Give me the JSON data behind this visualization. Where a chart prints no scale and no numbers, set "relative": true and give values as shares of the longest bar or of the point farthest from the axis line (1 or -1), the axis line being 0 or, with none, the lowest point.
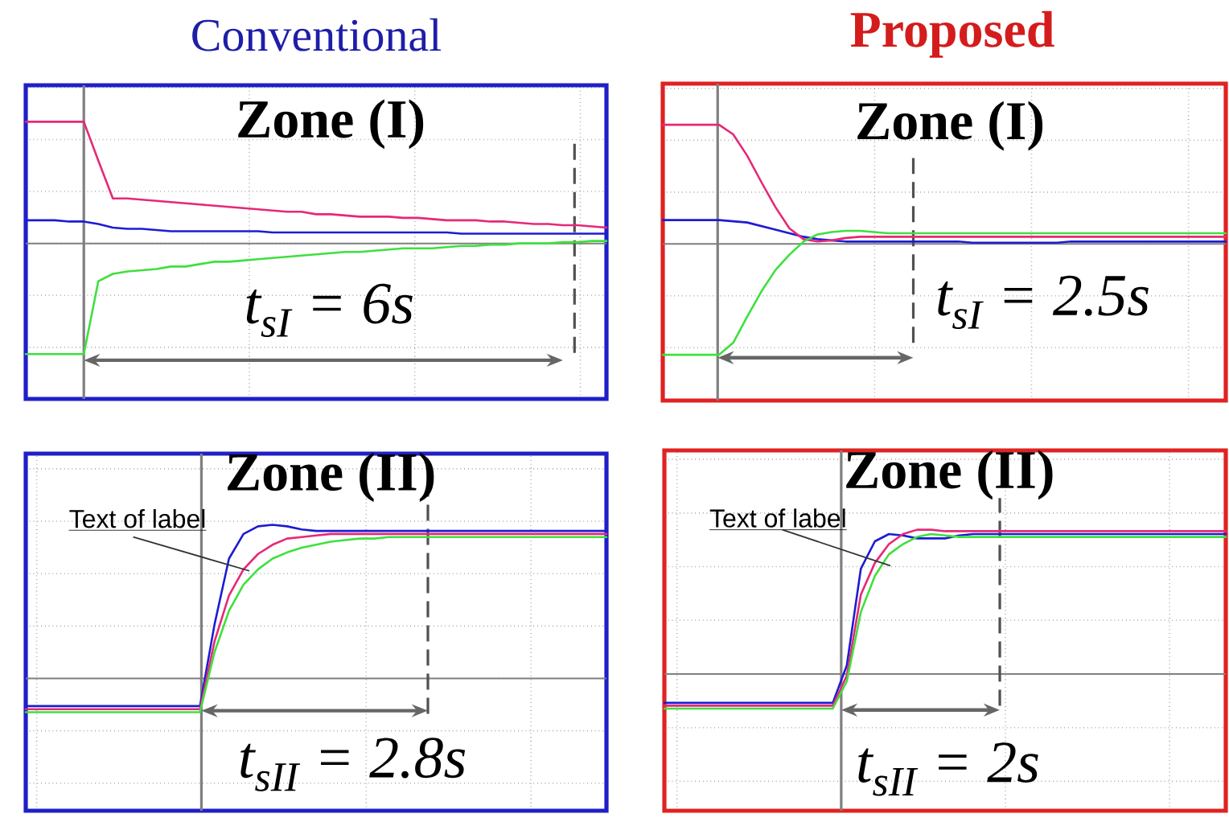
{
  "chart_data": [
    {
      "type": "line",
      "title": "Conventional",
      "relative": true,
      "grid": true,
      "tick_labels": false,
      "categories": [
        null,
        null,
        null,
        null,
        null,
        null,
        null,
        null,
        null,
        null,
        null,
        null,
        null,
        null,
        null,
        null,
        null,
        null,
        null,
        null,
        null,
        null,
        null,
        null,
        null,
        null,
        null,
        null,
        null,
        null,
        null,
        null,
        null,
        null,
        null,
        null,
        null,
        null,
        null,
        null,
        null
      ],
      "series": [
        {
          "color": "#1c1cd2",
          "values": [
            0.19,
            0.19,
            0.19,
            0.18,
            0.18,
            0.16,
            0.13,
            0.12,
            0.12,
            0.11,
            0.1,
            0.1,
            0.1,
            0.1,
            0.1,
            0.1,
            0.1,
            0.09,
            0.09,
            0.09,
            0.09,
            0.09,
            0.09,
            0.09,
            0.09,
            0.09,
            0.09,
            0.09,
            0.09,
            0.09,
            0.08,
            0.08,
            0.08,
            0.08,
            0.08,
            0.08,
            0.08,
            0.08,
            0.08,
            0.08,
            0.08
          ]
        },
        {
          "color": "#e62878",
          "values": [
            1,
            1,
            1,
            1,
            1,
            0.68,
            0.37,
            0.37,
            0.36,
            0.35,
            0.34,
            0.33,
            0.32,
            0.31,
            0.3,
            0.29,
            0.28,
            0.27,
            0.26,
            0.26,
            0.24,
            0.24,
            0.23,
            0.22,
            0.22,
            0.22,
            0.21,
            0.21,
            0.2,
            0.19,
            0.19,
            0.19,
            0.18,
            0.18,
            0.17,
            0.16,
            0.16,
            0.15,
            0.15,
            0.14,
            0.13
          ]
        },
        {
          "color": "#3ee03e",
          "values": [
            -0.91,
            -0.91,
            -0.91,
            -0.91,
            -0.91,
            -0.31,
            -0.25,
            -0.23,
            -0.22,
            -0.21,
            -0.19,
            -0.19,
            -0.17,
            -0.15,
            -0.15,
            -0.14,
            -0.13,
            -0.12,
            -0.11,
            -0.1,
            -0.09,
            -0.08,
            -0.07,
            -0.07,
            -0.06,
            -0.05,
            -0.04,
            -0.04,
            -0.04,
            -0.03,
            -0.02,
            -0.02,
            -0.01,
            -0.01,
            0,
            0,
            0,
            0.01,
            0.01,
            0.02,
            0.02
          ]
        }
      ],
      "annotations": [
        "Zone (I)",
        "t$_{sI}$ = 6s"
      ]
    },
    {
      "type": "line",
      "title": "Proposed",
      "relative": true,
      "grid": true,
      "tick_labels": false,
      "categories": [
        null,
        null,
        null,
        null,
        null,
        null,
        null,
        null,
        null,
        null,
        null,
        null,
        null,
        null,
        null,
        null,
        null,
        null,
        null,
        null,
        null,
        null,
        null,
        null,
        null,
        null,
        null,
        null,
        null,
        null,
        null,
        null,
        null,
        null,
        null,
        null,
        null,
        null,
        null,
        null,
        null
      ],
      "series": [
        {
          "color": "#1c1cd2",
          "values": [
            0.2,
            0.2,
            0.2,
            0.2,
            0.2,
            0.19,
            0.18,
            0.15,
            0.12,
            0.09,
            0.06,
            0.04,
            0.03,
            0.02,
            0.02,
            0.02,
            0.02,
            0.02,
            0.02,
            0.02,
            0.02,
            0.02,
            0.01,
            0.01,
            0.01,
            0.01,
            0.01,
            0.01,
            0.01,
            0.02,
            0.02,
            0.02,
            0.02,
            0.02,
            0.02,
            0.02,
            0.02,
            0.02,
            0.02,
            0.02,
            0.02
          ]
        },
        {
          "color": "#e62878",
          "values": [
            1,
            1,
            1,
            1,
            1,
            0.92,
            0.74,
            0.52,
            0.31,
            0.13,
            0.04,
            0.02,
            0.03,
            0.05,
            0.06,
            0.06,
            0.06,
            0.06,
            0.06,
            0.06,
            0.06,
            0.06,
            0.06,
            0.06,
            0.06,
            0.06,
            0.06,
            0.06,
            0.06,
            0.06,
            0.06,
            0.06,
            0.06,
            0.06,
            0.06,
            0.06,
            0.06,
            0.06,
            0.06,
            0.06,
            0.06
          ]
        },
        {
          "color": "#3ee03e",
          "values": [
            -0.93,
            -0.93,
            -0.93,
            -0.93,
            -0.93,
            -0.83,
            -0.61,
            -0.4,
            -0.22,
            -0.09,
            0.02,
            0.08,
            0.1,
            0.11,
            0.11,
            0.1,
            0.09,
            0.09,
            0.09,
            0.09,
            0.09,
            0.09,
            0.09,
            0.09,
            0.09,
            0.09,
            0.09,
            0.09,
            0.09,
            0.09,
            0.09,
            0.09,
            0.09,
            0.09,
            0.09,
            0.09,
            0.09,
            0.09,
            0.09,
            0.09,
            0.09
          ]
        }
      ],
      "annotations": [
        "Zone (I)",
        "t$_{sI}$ = 2.5s"
      ]
    },
    {
      "type": "line",
      "relative": true,
      "grid": true,
      "tick_labels": false,
      "categories": [
        null,
        null,
        null,
        null,
        null,
        null,
        null,
        null,
        null,
        null,
        null,
        null,
        null,
        null,
        null,
        null,
        null,
        null,
        null,
        null,
        null,
        null,
        null,
        null,
        null,
        null,
        null,
        null,
        null,
        null,
        null,
        null,
        null,
        null,
        null,
        null,
        null,
        null,
        null,
        null,
        null
      ],
      "series": [
        {
          "color": "#1c1cd2",
          "values": [
            -0.18,
            -0.18,
            -0.18,
            -0.18,
            -0.18,
            -0.18,
            -0.18,
            -0.18,
            -0.18,
            -0.18,
            -0.18,
            -0.18,
            -0.18,
            0.35,
            0.78,
            0.94,
            0.99,
            1,
            0.99,
            0.97,
            0.96,
            0.96,
            0.96,
            0.96,
            0.96,
            0.96,
            0.96,
            0.96,
            0.96,
            0.96,
            0.96,
            0.96,
            0.96,
            0.96,
            0.96,
            0.96,
            0.96,
            0.96,
            0.96,
            0.96,
            0.96
          ]
        },
        {
          "color": "#e62878",
          "values": [
            -0.2,
            -0.2,
            -0.2,
            -0.2,
            -0.2,
            -0.2,
            -0.2,
            -0.2,
            -0.2,
            -0.2,
            -0.2,
            -0.2,
            -0.2,
            0.24,
            0.54,
            0.71,
            0.81,
            0.87,
            0.91,
            0.92,
            0.93,
            0.94,
            0.94,
            0.94,
            0.94,
            0.94,
            0.94,
            0.94,
            0.94,
            0.94,
            0.94,
            0.94,
            0.94,
            0.94,
            0.94,
            0.94,
            0.94,
            0.94,
            0.94,
            0.94,
            0.94
          ]
        },
        {
          "color": "#3ee03e",
          "values": [
            -0.22,
            -0.22,
            -0.22,
            -0.22,
            -0.22,
            -0.22,
            -0.22,
            -0.22,
            -0.22,
            -0.22,
            -0.22,
            -0.22,
            -0.22,
            0.17,
            0.44,
            0.61,
            0.71,
            0.78,
            0.82,
            0.85,
            0.87,
            0.89,
            0.9,
            0.91,
            0.91,
            0.92,
            0.92,
            0.92,
            0.92,
            0.92,
            0.92,
            0.92,
            0.92,
            0.92,
            0.92,
            0.92,
            0.92,
            0.92,
            0.92,
            0.92,
            0.92
          ]
        }
      ],
      "annotations": [
        "Zone (II)",
        "t$_{sII}$ = 2.8s",
        "Text of label"
      ]
    },
    {
      "type": "line",
      "relative": true,
      "grid": true,
      "tick_labels": false,
      "categories": [
        null,
        null,
        null,
        null,
        null,
        null,
        null,
        null,
        null,
        null,
        null,
        null,
        null,
        null,
        null,
        null,
        null,
        null,
        null,
        null,
        null,
        null,
        null,
        null,
        null,
        null,
        null,
        null,
        null,
        null,
        null,
        null,
        null,
        null,
        null,
        null,
        null,
        null,
        null,
        null,
        null
      ],
      "series": [
        {
          "color": "#1c1cd2",
          "values": [
            -0.2,
            -0.2,
            -0.2,
            -0.2,
            -0.2,
            -0.2,
            -0.2,
            -0.2,
            -0.2,
            -0.2,
            -0.2,
            -0.2,
            -0.2,
            0.06,
            0.73,
            0.92,
            0.97,
            0.96,
            0.94,
            0.94,
            0.94,
            0.96,
            0.97,
            0.97,
            0.97,
            0.97,
            0.97,
            0.97,
            0.97,
            0.97,
            0.97,
            0.97,
            0.97,
            0.97,
            0.97,
            0.97,
            0.97,
            0.97,
            0.97,
            0.97,
            0.97
          ]
        },
        {
          "color": "#e62878",
          "values": [
            -0.22,
            -0.22,
            -0.22,
            -0.22,
            -0.22,
            -0.22,
            -0.22,
            -0.22,
            -0.22,
            -0.22,
            -0.22,
            -0.22,
            -0.22,
            -0.01,
            0.55,
            0.77,
            0.9,
            0.97,
            1,
            1,
            0.99,
            0.99,
            0.99,
            0.99,
            0.99,
            0.99,
            0.99,
            0.99,
            0.99,
            0.99,
            0.99,
            0.99,
            0.99,
            0.99,
            0.99,
            0.99,
            0.99,
            0.99,
            0.99,
            0.99,
            0.99
          ]
        },
        {
          "color": "#3ee03e",
          "values": [
            -0.24,
            -0.24,
            -0.24,
            -0.24,
            -0.24,
            -0.24,
            -0.24,
            -0.24,
            -0.24,
            -0.24,
            -0.24,
            -0.24,
            -0.24,
            -0.05,
            0.43,
            0.68,
            0.83,
            0.9,
            0.95,
            0.97,
            0.96,
            0.95,
            0.95,
            0.95,
            0.95,
            0.95,
            0.95,
            0.95,
            0.95,
            0.95,
            0.95,
            0.95,
            0.95,
            0.95,
            0.95,
            0.95,
            0.95,
            0.95,
            0.95,
            0.95,
            0.95
          ]
        }
      ],
      "annotations": [
        "Zone (II)",
        "t$_{sII}$ = 2s",
        "Text of label"
      ]
    }
  ]
}
